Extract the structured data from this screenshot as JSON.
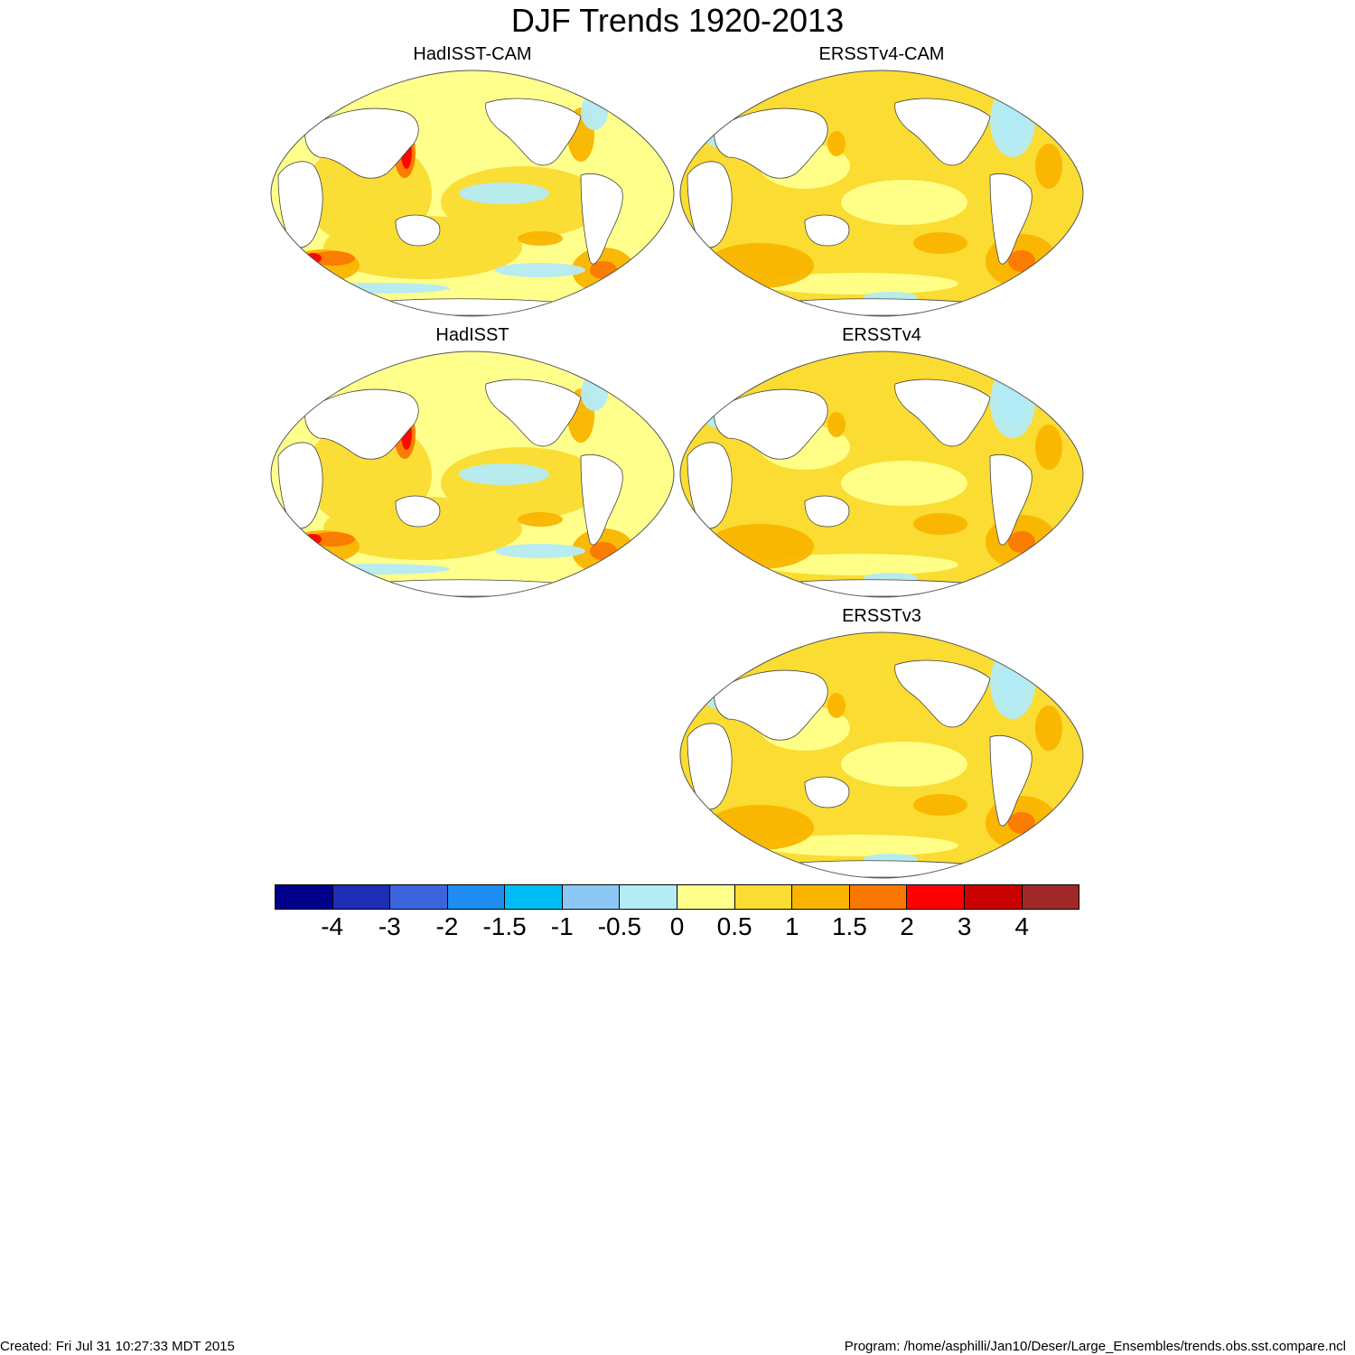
{
  "title": "DJF Trends 1920-2013",
  "panels": [
    {
      "title": "HadISST-CAM",
      "palette": "warm-had"
    },
    {
      "title": "ERSSTv4-CAM",
      "palette": "warm-ersst"
    },
    {
      "title": "HadISST",
      "palette": "warm-had"
    },
    {
      "title": "ERSSTv4",
      "palette": "warm-ersst"
    },
    {
      "title": "ERSSTv3",
      "palette": "warm-ersst"
    }
  ],
  "colorbar": {
    "colors": [
      "#00008b",
      "#1e2db4",
      "#3c64dc",
      "#1e8cf0",
      "#00bef5",
      "#8cc8f5",
      "#b4ebf5",
      "#ffff8c",
      "#fadc32",
      "#fab400",
      "#fa7800",
      "#ff0000",
      "#c80000",
      "#a02828"
    ],
    "labels": [
      "-4",
      "-3",
      "-2",
      "-1.5",
      "-1",
      "-0.5",
      "0",
      "0.5",
      "1",
      "1.5",
      "2",
      "3",
      "4"
    ]
  },
  "footer": {
    "created": "Created: Fri Jul 31 10:27:33 MDT 2015",
    "program": "Program: /home/asphilli/Jan10/Deser/Large_Ensembles/trends.obs.sst.compare.ncl"
  }
}
